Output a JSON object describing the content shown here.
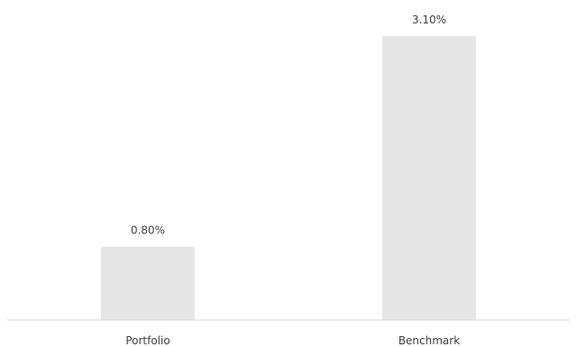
{
  "chart_data": {
    "type": "bar",
    "categories": [
      "Portfolio",
      "Benchmark"
    ],
    "values": [
      0.8,
      3.1
    ],
    "data_labels": [
      "0.80%",
      "3.10%"
    ],
    "title": "",
    "xlabel": "",
    "ylabel": "",
    "ylim": [
      0,
      3.5
    ],
    "grid": false,
    "legend": "none",
    "bar_color": "#e6e6e6",
    "axis_color": "#d9d9d9",
    "label_color": "#404040"
  }
}
